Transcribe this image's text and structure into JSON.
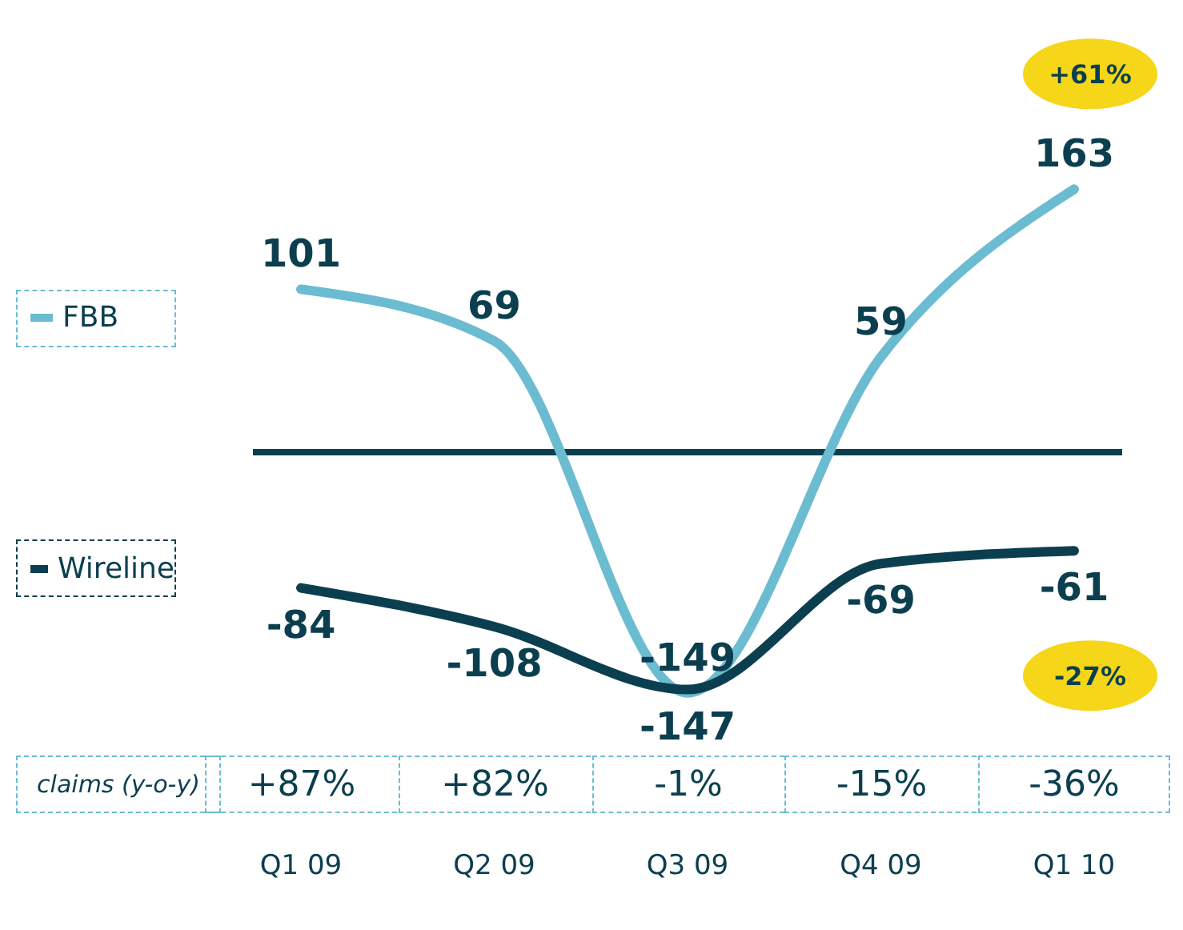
{
  "chart_data": {
    "type": "line",
    "categories": [
      "Q1 09",
      "Q2 09",
      "Q3 09",
      "Q4 09",
      "Q1 10"
    ],
    "series": [
      {
        "name": "FBB",
        "color": "#6bbcd1",
        "values": [
          101,
          69,
          -149,
          59,
          163
        ]
      },
      {
        "name": "Wireline",
        "color": "#0b3f4f",
        "values": [
          -84,
          -108,
          -147,
          -69,
          -61
        ]
      }
    ],
    "data_labels": true,
    "legend": "left",
    "marker": "none",
    "line_style": "solid",
    "tick_labels": "x",
    "ref_lines": [
      {
        "axis": "y",
        "value": 0,
        "color": "#0b3f4f"
      }
    ],
    "annotations": [
      "+61%",
      "-27%",
      "claims (y-o-y)",
      "+87%",
      "+82%",
      "-1%",
      "-15%",
      "-36%"
    ]
  }
}
